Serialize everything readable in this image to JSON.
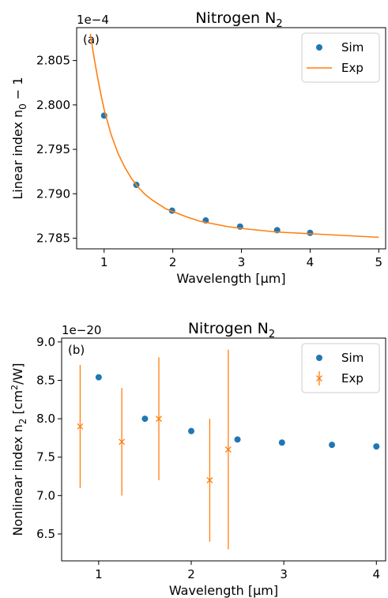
{
  "chart_data": [
    {
      "type": "line",
      "panel_label": "(a)",
      "title": "Nitrogen N",
      "title_sub": "2",
      "xlabel": "Wavelength [",
      "xlabel_unit": "μm",
      "xlabel_close": "]",
      "ylabel": "Linear index n",
      "ylabel_sub": "0",
      "ylabel_suffix": " − 1",
      "y_offset_label": "1e−4",
      "xlim": [
        0.6,
        5.1
      ],
      "ylim": [
        2.7838,
        2.8087
      ],
      "xticks": [
        1,
        2,
        3,
        4,
        5
      ],
      "xtick_labels": [
        "1",
        "2",
        "3",
        "4",
        "5"
      ],
      "yticks": [
        2.785,
        2.79,
        2.795,
        2.8,
        2.805
      ],
      "ytick_labels": [
        "2.785",
        "2.790",
        "2.795",
        "2.800",
        "2.805"
      ],
      "legend_position": "top-right",
      "series": [
        {
          "name": "Sim",
          "kind": "scatter",
          "color": "#1f77b4",
          "x": [
            1.0,
            1.47,
            1.99,
            2.48,
            2.98,
            3.52,
            4.0
          ],
          "y": [
            2.7988,
            2.791,
            2.7881,
            2.787,
            2.7863,
            2.7859,
            2.7856
          ]
        },
        {
          "name": "Exp",
          "kind": "line",
          "color": "#ff7f0e",
          "x": [
            0.8,
            0.85,
            0.9,
            0.95,
            1.0,
            1.1,
            1.2,
            1.3,
            1.4,
            1.5,
            1.6,
            1.7,
            1.8,
            1.9,
            2.0,
            2.2,
            2.4,
            2.6,
            2.8,
            3.0,
            3.25,
            3.5,
            3.75,
            4.0,
            4.25,
            4.5,
            4.75,
            5.0
          ],
          "y": [
            2.808,
            2.8055,
            2.8033,
            2.8013,
            2.7995,
            2.7967,
            2.7946,
            2.793,
            2.7917,
            2.7907,
            2.7899,
            2.7893,
            2.7888,
            2.7883,
            2.788,
            2.7874,
            2.7869,
            2.7866,
            2.7863,
            2.7861,
            2.7859,
            2.7857,
            2.7856,
            2.7855,
            2.7854,
            2.7853,
            2.7852,
            2.7851
          ]
        }
      ]
    },
    {
      "type": "scatter",
      "panel_label": "(b)",
      "title": "Nitrogen N",
      "title_sub": "2",
      "xlabel": "Wavelength [",
      "xlabel_unit": "μm",
      "xlabel_close": "]",
      "ylabel": "Nonlinear index n",
      "ylabel_sub": "2",
      "ylabel_suffix": " [cm",
      "ylabel_sup": "2",
      "ylabel_end": "/W]",
      "y_offset_label": "1e−20",
      "xlim": [
        0.6,
        4.1
      ],
      "ylim": [
        6.15,
        9.05
      ],
      "xticks": [
        1,
        2,
        3,
        4
      ],
      "xtick_labels": [
        "1",
        "2",
        "3",
        "4"
      ],
      "yticks": [
        6.5,
        7.0,
        7.5,
        8.0,
        8.5,
        9.0
      ],
      "ytick_labels": [
        "6.5",
        "7.0",
        "7.5",
        "8.0",
        "8.5",
        "9.0"
      ],
      "legend_position": "top-right",
      "series": [
        {
          "name": "Sim",
          "kind": "scatter",
          "color": "#1f77b4",
          "x": [
            1.0,
            1.5,
            2.0,
            2.5,
            2.98,
            3.52,
            4.0
          ],
          "y": [
            8.54,
            8.0,
            7.84,
            7.73,
            7.69,
            7.66,
            7.64
          ]
        },
        {
          "name": "Exp",
          "kind": "errorbar",
          "color": "#ff7f0e",
          "x": [
            0.8,
            1.25,
            1.65,
            2.2,
            2.4
          ],
          "y": [
            7.9,
            7.7,
            8.0,
            7.2,
            7.6
          ],
          "yerr": [
            0.8,
            0.7,
            0.8,
            0.8,
            1.3
          ]
        }
      ]
    }
  ]
}
